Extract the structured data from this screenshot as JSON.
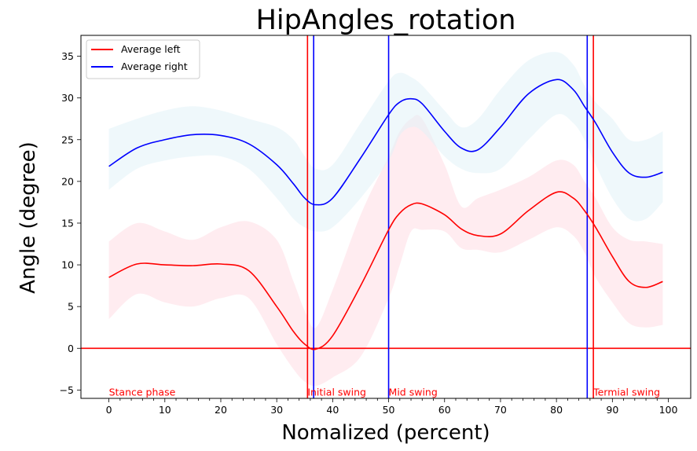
{
  "chart_data": {
    "type": "line",
    "title": "HipAngles_rotation",
    "xlabel": "Nomalized (percent)",
    "ylabel": "Angle (degree)",
    "xlim": [
      -5,
      104
    ],
    "ylim": [
      -6,
      37.5
    ],
    "xticks": [
      0,
      10,
      20,
      30,
      40,
      50,
      60,
      70,
      80,
      90,
      100
    ],
    "xtick_labels": [
      "0",
      "10",
      "20",
      "30",
      "40",
      "50",
      "60",
      "70",
      "80",
      "90",
      "100"
    ],
    "yticks": [
      -5,
      0,
      5,
      10,
      15,
      20,
      25,
      30,
      35
    ],
    "ytick_labels": [
      "−5",
      "0",
      "5",
      "10",
      "15",
      "20",
      "25",
      "30",
      "35"
    ],
    "grid": false,
    "legend_position": "top-left",
    "x": [
      0,
      5,
      10,
      15,
      20,
      25,
      30,
      33,
      35,
      37,
      40,
      45,
      50,
      52,
      54,
      56,
      60,
      63,
      66,
      70,
      75,
      80,
      83,
      85,
      87,
      90,
      93,
      96,
      99
    ],
    "series": [
      {
        "name": "Average left",
        "color": "#ff0000",
        "band_color": "#ffdde4",
        "values": [
          8.5,
          10.1,
          10.0,
          9.9,
          10.1,
          9.3,
          5.0,
          2.0,
          0.5,
          -0.1,
          1.5,
          7.5,
          14.2,
          16.2,
          17.2,
          17.3,
          16.0,
          14.3,
          13.5,
          13.7,
          16.5,
          18.7,
          18.0,
          16.5,
          14.5,
          11.0,
          8.0,
          7.3,
          8.0
        ],
        "upper": [
          12.8,
          15.0,
          14.0,
          13.0,
          14.5,
          15.2,
          13.0,
          8.0,
          4.5,
          2.5,
          7.0,
          16.0,
          23.0,
          26.0,
          27.5,
          27.5,
          22.0,
          17.0,
          18.0,
          19.0,
          20.5,
          22.5,
          22.0,
          20.0,
          18.0,
          14.5,
          13.0,
          12.8,
          12.5
        ],
        "lower": [
          3.5,
          6.5,
          5.5,
          5.0,
          6.0,
          6.0,
          0.5,
          -2.5,
          -4.0,
          -4.5,
          -3.5,
          -1.0,
          6.0,
          10.0,
          14.0,
          14.2,
          14.0,
          12.0,
          11.8,
          11.5,
          13.0,
          14.5,
          13.5,
          11.5,
          8.5,
          5.5,
          3.0,
          2.5,
          2.8
        ]
      },
      {
        "name": "Average right",
        "color": "#0000ff",
        "band_color": "#e2f3f8",
        "values": [
          21.8,
          24.0,
          25.0,
          25.6,
          25.5,
          24.5,
          22.0,
          19.7,
          18.0,
          17.2,
          18.0,
          22.8,
          28.0,
          29.5,
          29.9,
          29.3,
          26.0,
          24.0,
          23.8,
          26.5,
          30.5,
          32.2,
          31.0,
          29.0,
          27.0,
          23.5,
          21.0,
          20.5,
          21.1
        ],
        "upper": [
          26.3,
          27.5,
          28.5,
          29.0,
          28.5,
          27.5,
          26.5,
          25.0,
          23.0,
          21.5,
          22.0,
          27.0,
          32.0,
          33.0,
          32.5,
          31.5,
          28.5,
          26.5,
          27.5,
          31.0,
          34.5,
          35.5,
          34.0,
          31.5,
          29.5,
          27.5,
          25.0,
          25.0,
          26.0
        ],
        "lower": [
          19.0,
          21.5,
          22.5,
          23.0,
          23.0,
          21.5,
          18.0,
          15.5,
          14.5,
          14.0,
          14.5,
          18.0,
          22.5,
          25.5,
          26.5,
          26.0,
          23.0,
          21.5,
          21.0,
          21.5,
          25.0,
          28.0,
          27.0,
          25.0,
          22.0,
          18.0,
          15.5,
          15.5,
          17.5
        ]
      }
    ],
    "reference_lines": [
      {
        "orientation": "horizontal",
        "value": 0,
        "color": "#ff0000"
      },
      {
        "orientation": "vertical",
        "value": 35.5,
        "color": "#ff0000"
      },
      {
        "orientation": "vertical",
        "value": 36.6,
        "color": "#0000ff"
      },
      {
        "orientation": "vertical",
        "value": 50.0,
        "color": "#0000ff"
      },
      {
        "orientation": "vertical",
        "value": 85.5,
        "color": "#0000ff"
      },
      {
        "orientation": "vertical",
        "value": 86.6,
        "color": "#ff0000"
      }
    ],
    "annotations": [
      {
        "text": "Stance phase",
        "x": 0,
        "y": -5.3,
        "color": "#ff0000"
      },
      {
        "text": "Initial swing",
        "x": 35.5,
        "y": -5.3,
        "color": "#ff0000"
      },
      {
        "text": "Mid swing",
        "x": 50.0,
        "y": -5.3,
        "color": "#ff0000"
      },
      {
        "text": "Termial swing",
        "x": 86.6,
        "y": -5.3,
        "color": "#ff0000"
      }
    ]
  }
}
